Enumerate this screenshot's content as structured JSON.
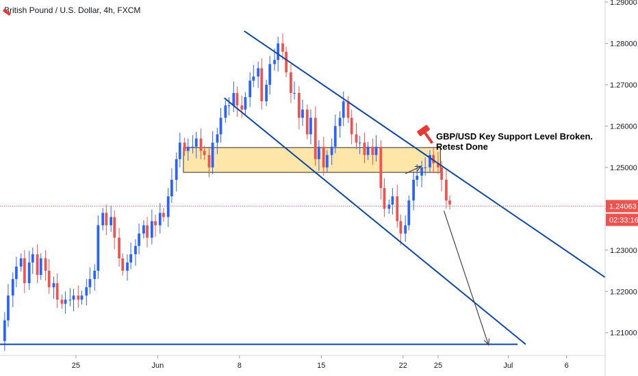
{
  "chart_data": {
    "type": "candlestick",
    "title": "British Pound / U.S. Dollar, 4h, FXCM",
    "y_ticks": [
      1.21,
      1.22,
      1.23,
      1.24,
      1.25,
      1.26,
      1.27,
      1.28,
      1.29
    ],
    "ylim": [
      1.2045,
      1.2905
    ],
    "x_ticks": [
      {
        "label": "25",
        "day": 25
      },
      {
        "label": "Jun",
        "day": 32
      },
      {
        "label": "8",
        "day": 39
      },
      {
        "label": "15",
        "day": 46
      },
      {
        "label": "22",
        "day": 53
      },
      {
        "label": "25",
        "day": 56
      },
      {
        "label": "Jul",
        "day": 62
      },
      {
        "label": "6",
        "day": 67
      }
    ],
    "xlim": [
      18.5,
      70.3
    ],
    "last_price": "1.24063",
    "countdown": "02:33:16",
    "last_price_value": 1.24063,
    "annotation": [
      "GBP/USD Key Support Level Broken.",
      "Retest Done"
    ],
    "colors": {
      "up": "#2962ff",
      "down": "#ef5350",
      "zone_fill": "#fde6a8",
      "zone_border": "#2b2b2b",
      "line": "#0d47a1",
      "price_line": "#ef5350",
      "price_tag": "#ef5350"
    },
    "support_zone": {
      "x_start": 34.2,
      "x_end": 56.2,
      "y_low": 1.2488,
      "y_high": 1.2548
    },
    "channel_upper": {
      "x1": 39.4,
      "y1": 1.283,
      "x2": 70.3,
      "y2": 1.2234
    },
    "channel_lower": {
      "x1": 37.7,
      "y1": 1.2668,
      "x2": 63.5,
      "y2": 1.2072
    },
    "horizontal_support": {
      "y": 1.2072
    },
    "retest_arrow": {
      "x1": 53.2,
      "y1": 1.2485,
      "x2": 54.5,
      "y2": 1.2502
    },
    "target_arrow": {
      "x1": 56.5,
      "y1": 1.2395,
      "x2": 60.3,
      "y2": 1.2072
    },
    "points": [
      [
        18.5,
        1.208
      ],
      [
        18.9,
        1.213
      ],
      [
        19.2,
        1.219
      ],
      [
        19.6,
        1.223
      ],
      [
        19.9,
        1.226
      ],
      [
        20.3,
        1.228
      ],
      [
        20.6,
        1.222
      ],
      [
        21.0,
        1.227
      ],
      [
        21.3,
        1.229
      ],
      [
        21.7,
        1.224
      ],
      [
        22.0,
        1.228
      ],
      [
        22.4,
        1.225
      ],
      [
        22.7,
        1.221
      ],
      [
        23.1,
        1.222
      ],
      [
        23.4,
        1.218
      ],
      [
        23.8,
        1.217
      ],
      [
        24.1,
        1.218
      ],
      [
        24.5,
        1.218
      ],
      [
        24.8,
        1.219
      ],
      [
        25.2,
        1.218
      ],
      [
        25.5,
        1.219
      ],
      [
        25.9,
        1.221
      ],
      [
        26.2,
        1.223
      ],
      [
        26.6,
        1.225
      ],
      [
        26.9,
        1.236
      ],
      [
        27.3,
        1.239
      ],
      [
        27.6,
        1.236
      ],
      [
        28.0,
        1.238
      ],
      [
        28.3,
        1.233
      ],
      [
        28.7,
        1.228
      ],
      [
        29.0,
        1.225
      ],
      [
        29.4,
        1.227
      ],
      [
        29.7,
        1.229
      ],
      [
        30.1,
        1.231
      ],
      [
        30.4,
        1.234
      ],
      [
        30.8,
        1.236
      ],
      [
        31.1,
        1.233
      ],
      [
        31.5,
        1.237
      ],
      [
        31.8,
        1.236
      ],
      [
        32.2,
        1.239
      ],
      [
        32.5,
        1.238
      ],
      [
        32.9,
        1.243
      ],
      [
        33.2,
        1.247
      ],
      [
        33.6,
        1.252
      ],
      [
        33.9,
        1.256
      ],
      [
        34.3,
        1.254
      ],
      [
        34.6,
        1.255
      ],
      [
        35.0,
        1.255
      ],
      [
        35.3,
        1.257
      ],
      [
        35.7,
        1.254
      ],
      [
        36.0,
        1.253
      ],
      [
        36.4,
        1.25
      ],
      [
        36.7,
        1.256
      ],
      [
        37.1,
        1.258
      ],
      [
        37.4,
        1.262
      ],
      [
        37.8,
        1.265
      ],
      [
        38.1,
        1.265
      ],
      [
        38.5,
        1.268
      ],
      [
        38.8,
        1.265
      ],
      [
        39.2,
        1.264
      ],
      [
        39.5,
        1.267
      ],
      [
        39.9,
        1.271
      ],
      [
        40.2,
        1.272
      ],
      [
        40.6,
        1.274
      ],
      [
        40.9,
        1.266
      ],
      [
        41.3,
        1.27
      ],
      [
        41.6,
        1.275
      ],
      [
        42.0,
        1.276
      ],
      [
        42.3,
        1.28
      ],
      [
        42.7,
        1.278
      ],
      [
        43.0,
        1.273
      ],
      [
        43.4,
        1.268
      ],
      [
        43.7,
        1.268
      ],
      [
        44.1,
        1.262
      ],
      [
        44.4,
        1.264
      ],
      [
        44.8,
        1.258
      ],
      [
        45.1,
        1.262
      ],
      [
        45.5,
        1.252
      ],
      [
        45.8,
        1.255
      ],
      [
        46.2,
        1.25
      ],
      [
        46.5,
        1.253
      ],
      [
        46.9,
        1.255
      ],
      [
        47.2,
        1.26
      ],
      [
        47.6,
        1.262
      ],
      [
        47.9,
        1.266
      ],
      [
        48.3,
        1.262
      ],
      [
        48.6,
        1.258
      ],
      [
        49.0,
        1.256
      ],
      [
        49.3,
        1.256
      ],
      [
        49.7,
        1.253
      ],
      [
        50.0,
        1.255
      ],
      [
        50.4,
        1.253
      ],
      [
        50.7,
        1.255
      ],
      [
        51.1,
        1.245
      ],
      [
        51.4,
        1.24
      ],
      [
        51.8,
        1.241
      ],
      [
        52.1,
        1.243
      ],
      [
        52.5,
        1.237
      ],
      [
        52.8,
        1.234
      ],
      [
        53.2,
        1.236
      ],
      [
        53.5,
        1.242
      ],
      [
        53.9,
        1.247
      ],
      [
        54.2,
        1.248
      ],
      [
        54.6,
        1.25
      ],
      [
        54.9,
        1.25
      ],
      [
        55.3,
        1.253
      ],
      [
        55.6,
        1.251
      ],
      [
        56.0,
        1.25
      ],
      [
        56.3,
        1.247
      ],
      [
        56.7,
        1.242
      ],
      [
        57.0,
        1.241
      ]
    ]
  }
}
